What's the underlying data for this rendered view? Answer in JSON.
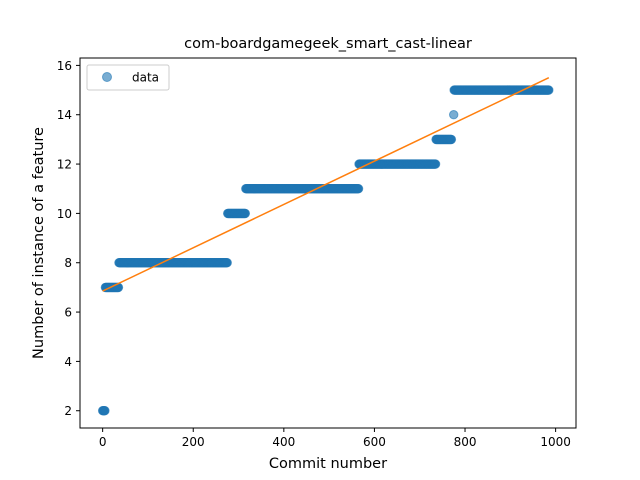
{
  "chart_data": {
    "type": "scatter",
    "title": "com-boardgamegeek_smart_cast-linear",
    "xlabel": "Commit number",
    "ylabel": "Number of instance of a feature",
    "xlim": [
      -50,
      1045
    ],
    "ylim": [
      1.3,
      16.3
    ],
    "xticks": [
      0,
      200,
      400,
      600,
      800,
      1000
    ],
    "yticks": [
      2,
      4,
      6,
      8,
      10,
      12,
      14,
      16
    ],
    "grid": false,
    "legend": {
      "position": "upper left",
      "entries": [
        "data"
      ]
    },
    "series": [
      {
        "name": "data",
        "kind": "markers",
        "color": "#1f77b4",
        "alpha": 0.6,
        "segments": [
          {
            "x_start": 0,
            "x_end": 5,
            "y": 2
          },
          {
            "x_start": 6,
            "x_end": 35,
            "y": 7
          },
          {
            "x_start": 36,
            "x_end": 275,
            "y": 8
          },
          {
            "x_start": 276,
            "x_end": 315,
            "y": 10
          },
          {
            "x_start": 316,
            "x_end": 565,
            "y": 11
          },
          {
            "x_start": 566,
            "x_end": 735,
            "y": 12
          },
          {
            "x_start": 736,
            "x_end": 770,
            "y": 13
          },
          {
            "x_start": 775,
            "x_end": 775,
            "y": 14
          },
          {
            "x_start": 776,
            "x_end": 985,
            "y": 15
          }
        ]
      },
      {
        "kind": "line",
        "color": "#ff7f0e",
        "x": [
          0,
          985
        ],
        "y": [
          6.85,
          15.5
        ]
      }
    ]
  }
}
